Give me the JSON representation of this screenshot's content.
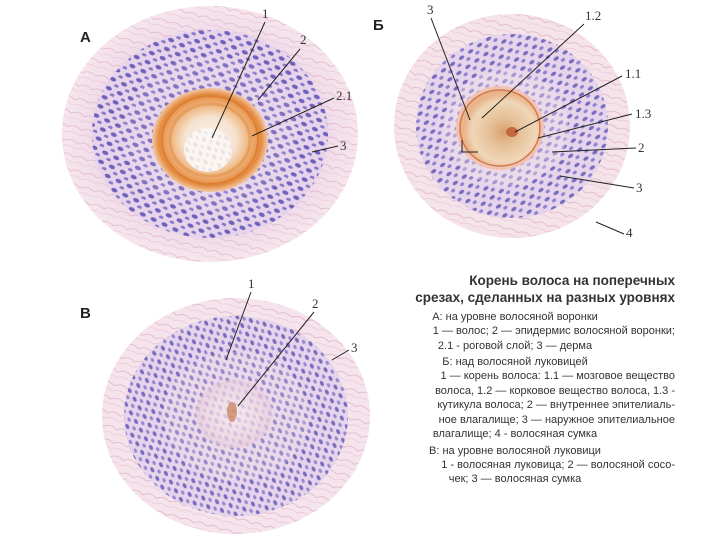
{
  "panels": [
    {
      "letter": "А",
      "labels": [
        "1",
        "2",
        "2.1",
        "3"
      ]
    },
    {
      "letter": "Б",
      "labels": [
        "3",
        "1.2",
        "1.1",
        "1.3",
        "2",
        "3",
        "4"
      ]
    },
    {
      "letter": "В",
      "labels": [
        "1",
        "2",
        "3"
      ]
    }
  ],
  "caption": {
    "title_line1": "Корень волоса на поперечных",
    "title_line2": "срезах, сделанных на разных уровнях",
    "section_a_head": "А: на уровне волосяной воронки",
    "section_a_line1": "1 — волос; 2 — эпидермис волосяной воронки;",
    "section_a_line2": "2.1 - роговой слой; 3 — дерма",
    "section_b_head": "Б: над волосяной луковицей",
    "section_b_line1": "1 — корень волоса: 1.1 — мозговое вещество",
    "section_b_line2": "волоса, 1.2 — корковое вещество волоса, 1.3 -",
    "section_b_line3": "кутикула волоса; 2 — внутреннее эпителиаль-",
    "section_b_line4": "ное влагалище; 3 — наружное эпителиальное",
    "section_b_line5": "влагалище; 4 - волосяная сумка",
    "section_c_head": "В: на уровне волосяной луковици",
    "section_c_line1": "1 - волосяная луковица; 2 — волосяной сосо-",
    "section_c_line2": "чек; 3 — волосяная сумка"
  }
}
